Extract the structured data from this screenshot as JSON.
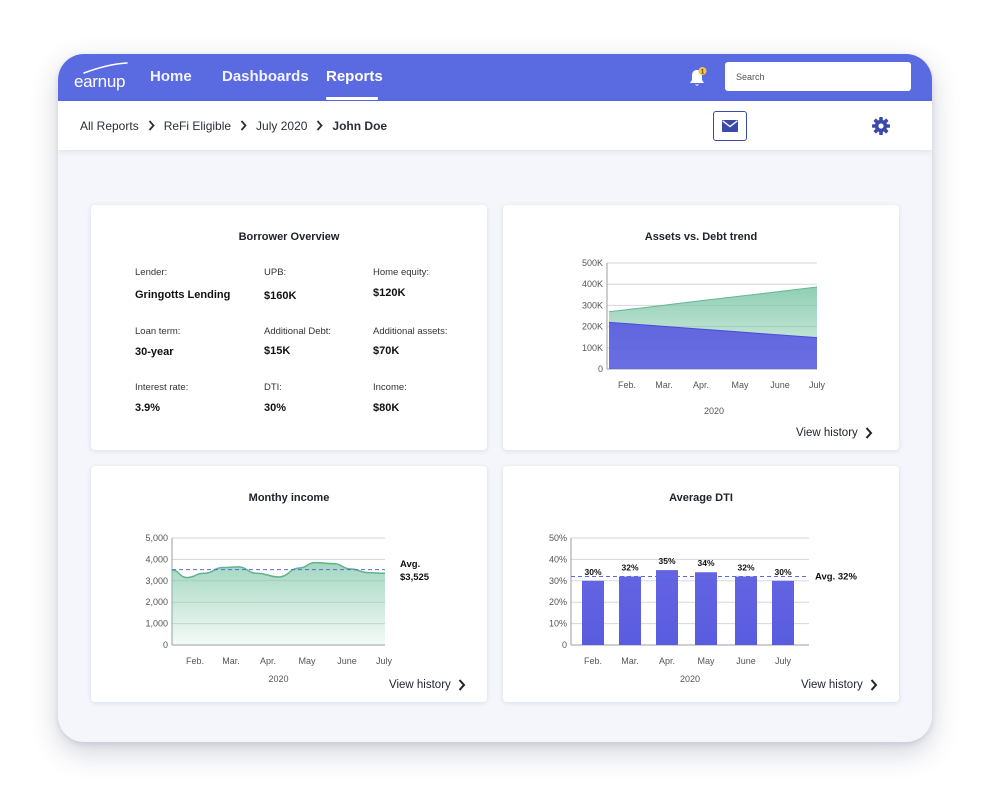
{
  "app": {
    "logo_text": "earnup",
    "nav": [
      {
        "label": "Home"
      },
      {
        "label": "Dashboards"
      },
      {
        "label": "Reports"
      }
    ],
    "notification_badge": "1",
    "search": {
      "placeholder": "Search",
      "value": ""
    },
    "colors": {
      "primary": "#5a6ae0",
      "accent_dark": "#3b4aa8",
      "teal": "#7cc6a6",
      "badge": "#f2c14e"
    }
  },
  "breadcrumb": [
    {
      "label": "All Reports"
    },
    {
      "label": "ReFi Eligible"
    },
    {
      "label": "July 2020"
    },
    {
      "label": "John Doe"
    }
  ],
  "toolbar": {
    "mail_icon": "mail-icon",
    "settings_icon": "gear-icon"
  },
  "overview": {
    "title": "Borrower Overview",
    "fields": [
      {
        "label": "Lender:",
        "value": "Gringotts Lending"
      },
      {
        "label": "UPB:",
        "value": "$160K"
      },
      {
        "label": "Home equity:",
        "value": "$120K"
      },
      {
        "label": "Loan term:",
        "value": "30-year"
      },
      {
        "label": "Additional Debt:",
        "value": "$15K"
      },
      {
        "label": "Additional assets:",
        "value": "$70K"
      },
      {
        "label": "Interest rate:",
        "value": "3.9%"
      },
      {
        "label": "DTI:",
        "value": "30%"
      },
      {
        "label": "Income:",
        "value": "$80K"
      }
    ]
  },
  "common": {
    "view_history": "View history"
  },
  "chart_data": [
    {
      "type": "area",
      "title": "Assets vs. Debt trend",
      "categories": [
        "Feb.",
        "Mar.",
        "Apr.",
        "May",
        "June",
        "July"
      ],
      "xlabel": "2020",
      "ylabel": "",
      "yticks": [
        "0",
        "100K",
        "200K",
        "300K",
        "400K",
        "500K"
      ],
      "ylim": [
        0,
        500000
      ],
      "series": [
        {
          "values": [
            270000,
            293000,
            317000,
            340000,
            363000,
            387000
          ],
          "color": "#7cc6a6"
        },
        {
          "values": [
            220000,
            206000,
            191000,
            177000,
            162000,
            148000
          ],
          "color": "#5a5ce0"
        }
      ],
      "grid": true
    },
    {
      "type": "area",
      "title": "Monthy income",
      "categories": [
        "Feb.",
        "Mar.",
        "Apr.",
        "May",
        "June",
        "July"
      ],
      "xlabel": "2020",
      "ylabel": "",
      "yticks": [
        "0",
        "1,000",
        "2,000",
        "3,000",
        "4,000",
        "5,000"
      ],
      "ylim": [
        0,
        5000
      ],
      "x": [
        0,
        0.35,
        0.75,
        1.2,
        1.55,
        2.0,
        2.5,
        3.0,
        3.35,
        3.8,
        4.2,
        4.6,
        5.0
      ],
      "values": [
        3500,
        3150,
        3350,
        3620,
        3650,
        3350,
        3180,
        3600,
        3850,
        3800,
        3550,
        3380,
        3350
      ],
      "average": 3525,
      "average_label": "Avg.",
      "average_value_label": "$3,525",
      "color": "#7cc6a6",
      "grid": true
    },
    {
      "type": "bar",
      "title": "Average DTI",
      "categories": [
        "Feb.",
        "Mar.",
        "Apr.",
        "May",
        "June",
        "July"
      ],
      "xlabel": "2020",
      "ylabel": "",
      "yticks": [
        "0",
        "10%",
        "20%",
        "30%",
        "40%",
        "50%"
      ],
      "ylim": [
        0,
        50
      ],
      "values": [
        30,
        32,
        35,
        34,
        32,
        30
      ],
      "data_labels": [
        "30%",
        "32%",
        "35%",
        "34%",
        "32%",
        "30%"
      ],
      "average": 32,
      "average_label": "Avg. 32%",
      "color": "#5a5ce0",
      "grid": true
    }
  ]
}
